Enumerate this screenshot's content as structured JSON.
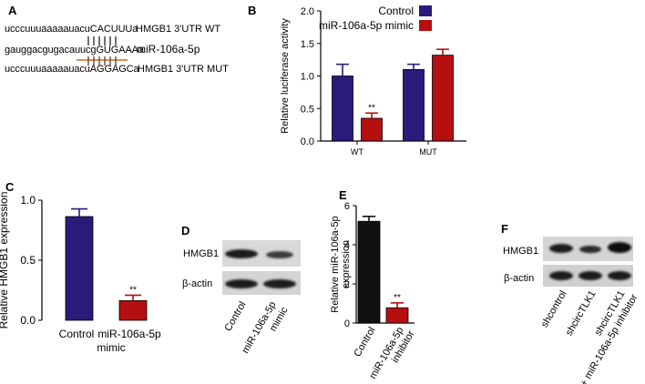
{
  "colors": {
    "control": "#2a1a7a",
    "treated": "#b50f10",
    "black": "#111111",
    "seed_line": "#c76d1f"
  },
  "panel_a": {
    "label": "A",
    "rows": [
      {
        "seq": "ucccuuuaaaaauacuCACUUUa",
        "label": "HMGB1 3'UTR WT"
      },
      {
        "seq": "gauggacgugacauucgGUGAAAa",
        "label": "miR-106a-5p"
      },
      {
        "seq": "ucccuuuaaaaauacuAGGAGCa",
        "label": "HMGB1 3'UTR MUT"
      }
    ]
  },
  "panel_d": {
    "label": "D",
    "rows": [
      "HMGB1",
      "β-actin"
    ],
    "lanes": [
      "Control",
      "miR-106a-5p mimic"
    ]
  },
  "panel_f": {
    "label": "F",
    "rows": [
      "HMGB1",
      "β-actin"
    ],
    "lanes": [
      "shcontrol",
      "shcircTLK1",
      "shcircTLK1 + miR-106a-5p inhibitor"
    ]
  },
  "chart_data": [
    {
      "id": "B",
      "type": "bar",
      "label": "B",
      "ylabel": "Relative luciferase activity",
      "ylim": [
        0,
        2.0
      ],
      "yticks": [
        "0.0",
        "0.5",
        "1.0",
        "1.5",
        "2.0"
      ],
      "categories": [
        "WT",
        "MUT"
      ],
      "series": [
        {
          "name": "Control",
          "values": [
            1.0,
            1.1
          ],
          "errors": [
            0.18,
            0.08
          ]
        },
        {
          "name": "miR-106a-5p mimic",
          "values": [
            0.35,
            1.32
          ],
          "errors": [
            0.08,
            0.09
          ]
        }
      ],
      "annotations": [
        {
          "category": "WT",
          "series": 1,
          "text": "**"
        }
      ],
      "legend": "top-right"
    },
    {
      "id": "C",
      "type": "bar",
      "label": "C",
      "ylabel": "Relative HMGB1 expression",
      "ylim": [
        0,
        1.1
      ],
      "yticks": [
        "0.0",
        "0.5",
        "1.0"
      ],
      "categories": [
        "Control",
        "miR-106a-5p mimic"
      ],
      "values": [
        0.95,
        0.18
      ],
      "errors": [
        0.07,
        0.05
      ],
      "annotations": [
        {
          "index": 1,
          "text": "**"
        }
      ]
    },
    {
      "id": "E",
      "type": "bar",
      "label": "E",
      "ylabel": "Relative miR-106a-5p expression",
      "ylim": [
        0,
        6
      ],
      "yticks": [
        "0",
        "2",
        "4",
        "6"
      ],
      "categories": [
        "Control",
        "miR-106a-5p inhibitor"
      ],
      "values": [
        5.2,
        0.78
      ],
      "errors": [
        0.25,
        0.25
      ],
      "annotations": [
        {
          "index": 1,
          "text": "**"
        }
      ]
    }
  ]
}
